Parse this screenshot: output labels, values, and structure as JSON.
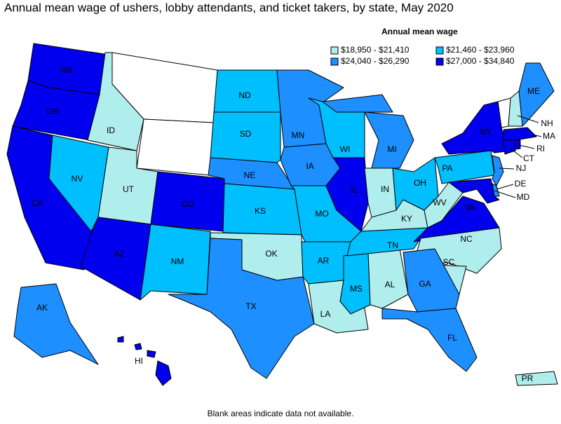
{
  "title": "Annual mean wage of ushers, lobby attendants, and ticket takers, by state, May 2020",
  "legend": {
    "title": "Annual mean wage",
    "bins": [
      {
        "label": "$18,950 - $21,410",
        "color": "#b0eeee"
      },
      {
        "label": "$21,460 - $23,960",
        "color": "#00bfff"
      },
      {
        "label": "$24,040 - $26,290",
        "color": "#1e8fff"
      },
      {
        "label": "$27,000 - $34,840",
        "color": "#0000ee"
      }
    ]
  },
  "states": [
    {
      "abbr": "WA",
      "bin": 3
    },
    {
      "abbr": "OR",
      "bin": 3
    },
    {
      "abbr": "CA",
      "bin": 3
    },
    {
      "abbr": "NV",
      "bin": 1
    },
    {
      "abbr": "ID",
      "bin": 0
    },
    {
      "abbr": "UT",
      "bin": 0
    },
    {
      "abbr": "AZ",
      "bin": 3
    },
    {
      "abbr": "CO",
      "bin": 3
    },
    {
      "abbr": "NM",
      "bin": 1
    },
    {
      "abbr": "ND",
      "bin": 1
    },
    {
      "abbr": "SD",
      "bin": 1
    },
    {
      "abbr": "NE",
      "bin": 2
    },
    {
      "abbr": "KS",
      "bin": 1
    },
    {
      "abbr": "OK",
      "bin": 0
    },
    {
      "abbr": "TX",
      "bin": 2
    },
    {
      "abbr": "MN",
      "bin": 2
    },
    {
      "abbr": "IA",
      "bin": 2
    },
    {
      "abbr": "MO",
      "bin": 1
    },
    {
      "abbr": "AR",
      "bin": 1
    },
    {
      "abbr": "LA",
      "bin": 0
    },
    {
      "abbr": "MS",
      "bin": 1
    },
    {
      "abbr": "AL",
      "bin": 0
    },
    {
      "abbr": "TN",
      "bin": 1
    },
    {
      "abbr": "KY",
      "bin": 0
    },
    {
      "abbr": "IL",
      "bin": 3
    },
    {
      "abbr": "WI",
      "bin": 1
    },
    {
      "abbr": "MI",
      "bin": 2
    },
    {
      "abbr": "IN",
      "bin": 0
    },
    {
      "abbr": "OH",
      "bin": 1
    },
    {
      "abbr": "WV",
      "bin": 0
    },
    {
      "abbr": "VA",
      "bin": 3
    },
    {
      "abbr": "NC",
      "bin": 0
    },
    {
      "abbr": "SC",
      "bin": 0
    },
    {
      "abbr": "GA",
      "bin": 2
    },
    {
      "abbr": "FL",
      "bin": 2
    },
    {
      "abbr": "PA",
      "bin": 1
    },
    {
      "abbr": "NY",
      "bin": 3
    },
    {
      "abbr": "ME",
      "bin": 2
    },
    {
      "abbr": "NH",
      "bin": 0
    },
    {
      "abbr": "MA",
      "bin": 3
    },
    {
      "abbr": "RI",
      "bin": 3
    },
    {
      "abbr": "CT",
      "bin": 3
    },
    {
      "abbr": "NJ",
      "bin": 2
    },
    {
      "abbr": "DE",
      "bin": 2
    },
    {
      "abbr": "MD",
      "bin": 3
    },
    {
      "abbr": "AK",
      "bin": 2
    },
    {
      "abbr": "HI",
      "bin": 3
    },
    {
      "abbr": "PR",
      "bin": 0
    }
  ],
  "note": "Blank areas indicate data not available."
}
